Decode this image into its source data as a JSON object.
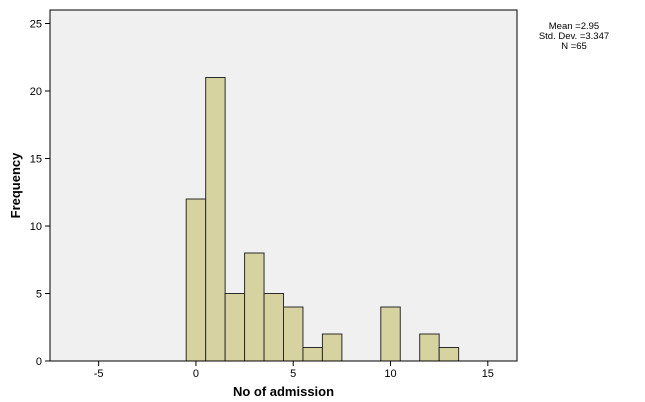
{
  "colors": {
    "plot_background": "#f0f0f0",
    "bar_fill": "#d6d3a0",
    "bar_stroke": "#2b2b2b",
    "axis": "#000000"
  },
  "stats": {
    "mean": "Mean =2.95",
    "std_dev": "Std. Dev. =3.347",
    "n": "N =65"
  },
  "chart_data": {
    "type": "bar",
    "subtype": "histogram",
    "xlabel": "No of admission",
    "ylabel": "Frequency",
    "xlim": [
      -7.5,
      16.5
    ],
    "ylim": [
      0,
      26
    ],
    "x_ticks": [
      -5,
      0,
      5,
      10,
      15
    ],
    "y_ticks": [
      0,
      5,
      10,
      15,
      20,
      25
    ],
    "bin_width": 1,
    "grid": false,
    "bins": [
      {
        "start": -0.5,
        "end": 0.5,
        "count": 12
      },
      {
        "start": 0.5,
        "end": 1.5,
        "count": 21
      },
      {
        "start": 1.5,
        "end": 2.5,
        "count": 5
      },
      {
        "start": 2.5,
        "end": 3.5,
        "count": 8
      },
      {
        "start": 3.5,
        "end": 4.5,
        "count": 5
      },
      {
        "start": 4.5,
        "end": 5.5,
        "count": 4
      },
      {
        "start": 5.5,
        "end": 6.5,
        "count": 1
      },
      {
        "start": 6.5,
        "end": 7.5,
        "count": 2
      },
      {
        "start": 9.5,
        "end": 10.5,
        "count": 4
      },
      {
        "start": 11.5,
        "end": 12.5,
        "count": 2
      },
      {
        "start": 12.5,
        "end": 13.5,
        "count": 1
      }
    ]
  }
}
